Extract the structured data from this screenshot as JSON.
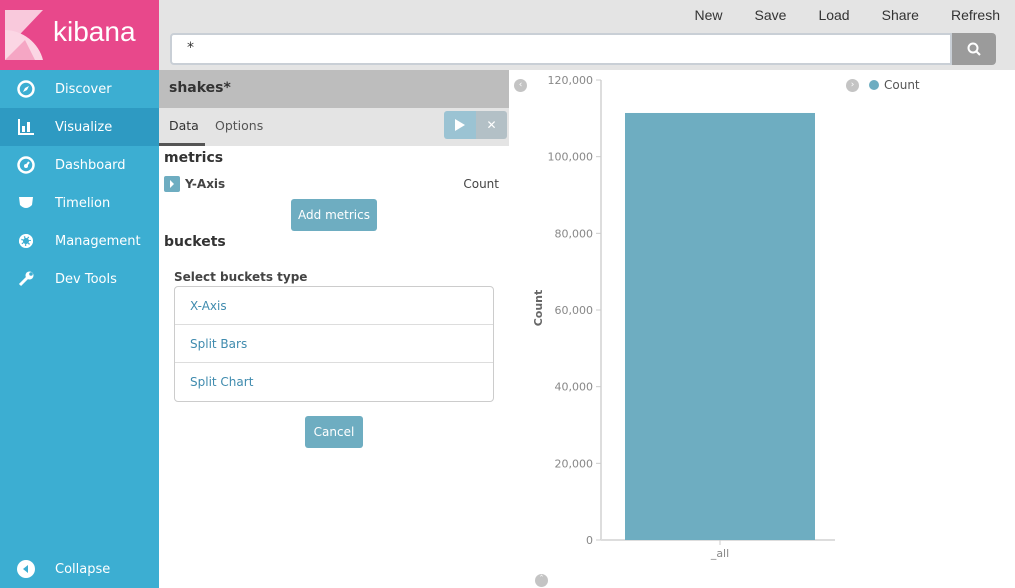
{
  "app": {
    "logo": "kibana"
  },
  "sidebar": {
    "items": [
      {
        "label": "Discover",
        "icon": "compass-icon"
      },
      {
        "label": "Visualize",
        "icon": "bar-chart-icon",
        "active": true
      },
      {
        "label": "Dashboard",
        "icon": "dashboard-icon"
      },
      {
        "label": "Timelion",
        "icon": "timelion-icon"
      },
      {
        "label": "Management",
        "icon": "gear-icon"
      },
      {
        "label": "Dev Tools",
        "icon": "wrench-icon"
      }
    ],
    "collapse": "Collapse"
  },
  "toolbar": {
    "new": "New",
    "save": "Save",
    "load": "Load",
    "share": "Share",
    "refresh": "Refresh"
  },
  "search": {
    "value": "*"
  },
  "editor": {
    "title": "shakes*",
    "tabs": [
      "Data",
      "Options"
    ],
    "metrics_heading": "metrics",
    "y_axis_label": "Y-Axis",
    "y_axis_value": "Count",
    "add_metrics": "Add metrics",
    "buckets_heading": "buckets",
    "select_buckets": "Select buckets type",
    "bucket_types": [
      "X-Axis",
      "Split Bars",
      "Split Chart"
    ],
    "cancel": "Cancel"
  },
  "colors": {
    "sidebar": "#3caed2",
    "logo_bg": "#e8488b",
    "bar": "#6eadc1"
  },
  "chart_data": {
    "type": "bar",
    "categories": [
      "_all"
    ],
    "series": [
      {
        "name": "Count",
        "values": [
          111396
        ]
      }
    ],
    "ylabel": "Count",
    "xlabel": "",
    "ylim": [
      0,
      120000
    ],
    "yticks": [
      "0",
      "20,000",
      "40,000",
      "60,000",
      "80,000",
      "100,000",
      "120,000"
    ],
    "legend": "top-right",
    "grid": false
  }
}
